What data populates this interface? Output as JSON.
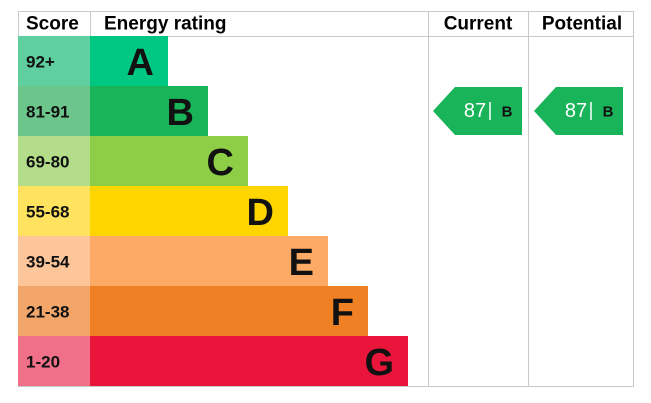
{
  "header": {
    "score": "Score",
    "energy_rating": "Energy rating",
    "current": "Current",
    "potential": "Potential"
  },
  "rows": [
    {
      "score": "92+",
      "rating": "A"
    },
    {
      "score": "81-91",
      "rating": "B"
    },
    {
      "score": "69-80",
      "rating": "C"
    },
    {
      "score": "55-68",
      "rating": "D"
    },
    {
      "score": "39-54",
      "rating": "E"
    },
    {
      "score": "21-38",
      "rating": "F"
    },
    {
      "score": "1-20",
      "rating": "G"
    }
  ],
  "current": {
    "value": 87,
    "rating": "B"
  },
  "potential": {
    "value": 87,
    "rating": "B"
  }
}
